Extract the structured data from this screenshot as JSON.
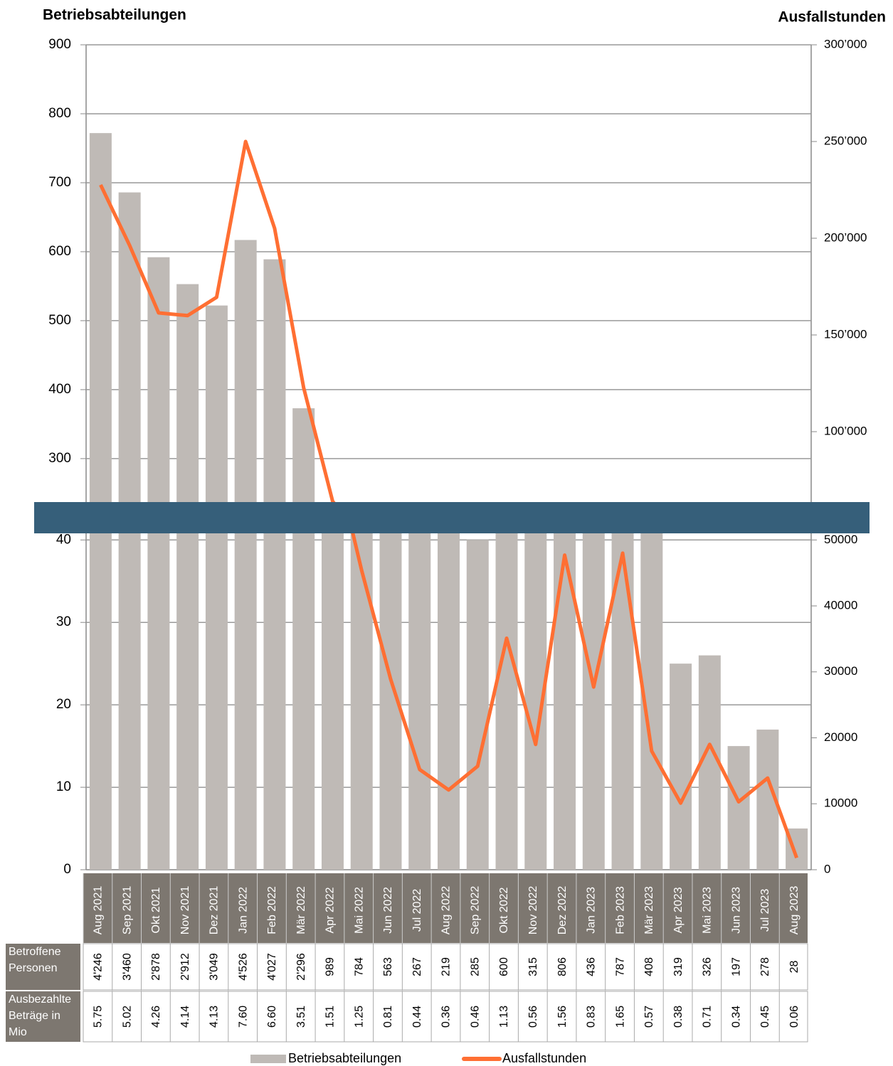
{
  "chart_data": {
    "type": "bar",
    "title": "Betriebsabteilungen",
    "y2_title": "Ausfallstunden",
    "categories": [
      "Aug 2021",
      "Sep 2021",
      "Okt 2021",
      "Nov 2021",
      "Dez 2021",
      "Jan 2022",
      "Feb 2022",
      "Mär 2022",
      "Apr 2022",
      "Mai 2022",
      "Jun 2022",
      "Jul 2022",
      "Aug 2022",
      "Sep 2022",
      "Okt 2022",
      "Nov 2022",
      "Dez 2022",
      "Jan 2023",
      "Feb 2023",
      "Mär 2023",
      "Apr 2023",
      "Mai 2023",
      "Jun 2023",
      "Jul 2023",
      "Aug 2023"
    ],
    "series": [
      {
        "name": "Betriebsabteilungen",
        "color": "#bfbab6",
        "values": [
          772,
          686,
          592,
          553,
          522,
          617,
          589,
          373,
          180,
          120,
          90,
          60,
          50,
          40,
          80,
          55,
          100,
          70,
          90,
          60,
          25,
          26,
          15,
          17,
          5
        ]
      },
      {
        "name": "Ausfallstunden",
        "type": "line",
        "axis": "y2",
        "color": "#ff6f33",
        "values": [
          227600,
          196300,
          161400,
          160000,
          169500,
          250000,
          205100,
          122800,
          64000,
          45400,
          28900,
          15200,
          12100,
          15700,
          35100,
          19000,
          47700,
          27700,
          48000,
          18000,
          10100,
          19000,
          10300,
          13900,
          1800
        ]
      }
    ],
    "panels": [
      {
        "ylim": [
          237,
          900
        ],
        "yticks": [
          300,
          400,
          500,
          600,
          700,
          800,
          900
        ],
        "y2lim": [
          63600,
          300000
        ],
        "y2ticks": [
          {
            "value": 100000,
            "label": "100’000"
          },
          {
            "value": 150000,
            "label": "150’000"
          },
          {
            "value": 200000,
            "label": "200’000"
          },
          {
            "value": 250000,
            "label": "250’000"
          },
          {
            "value": 300000,
            "label": "300’000"
          }
        ]
      },
      {
        "ylim": [
          0,
          40.8
        ],
        "yticks": [
          0,
          10,
          20,
          30,
          40
        ],
        "y2lim": [
          0,
          51000
        ],
        "y2ticks": [
          0,
          10000,
          20000,
          30000,
          40000,
          50000
        ]
      }
    ],
    "grid": true,
    "table": {
      "rows": [
        {
          "label": "Betroffene Personen",
          "values": [
            "4'246",
            "3'460",
            "2'878",
            "2'912",
            "3'049",
            "4'526",
            "4'027",
            "2'296",
            "989",
            "784",
            "563",
            "267",
            "219",
            "285",
            "600",
            "315",
            "806",
            "436",
            "787",
            "408",
            "319",
            "326",
            "197",
            "278",
            "28"
          ]
        },
        {
          "label": "Ausbezahlte Beträge in Mio",
          "values": [
            "5.75",
            "5.02",
            "4.26",
            "4.14",
            "4.13",
            "7.60",
            "6.60",
            "3.51",
            "1.51",
            "1.25",
            "0.81",
            "0.44",
            "0.36",
            "0.46",
            "1.13",
            "0.56",
            "1.56",
            "0.83",
            "1.65",
            "0.57",
            "0.38",
            "0.71",
            "0.34",
            "0.45",
            "0.06"
          ]
        }
      ]
    }
  }
}
